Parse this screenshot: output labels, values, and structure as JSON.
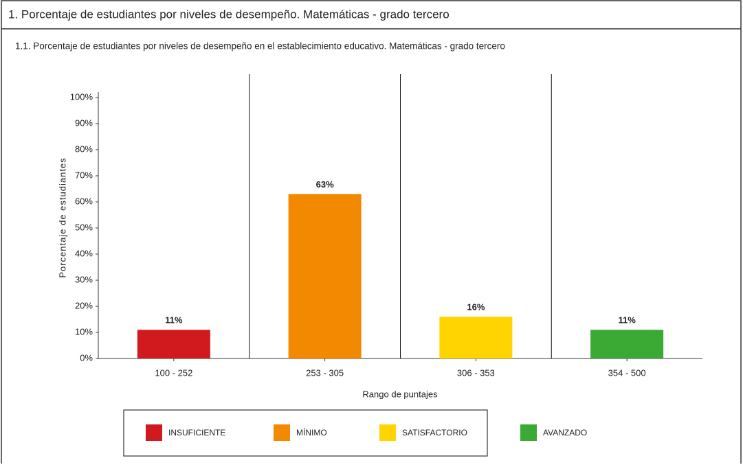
{
  "header": {
    "title": "1. Porcentaje de estudiantes por niveles de desempeño. Matemáticas - grado tercero"
  },
  "chart_data": {
    "type": "bar",
    "title": "1.1. Porcentaje de estudiantes por niveles de desempeño en el establecimiento educativo. Matemáticas - grado tercero",
    "x_label": "Rango de puntajes",
    "y_label": "Porcentaje de estudiantes",
    "categories": [
      "100 - 252",
      "253 - 305",
      "306 - 353",
      "354 - 500"
    ],
    "values": [
      11,
      63,
      16,
      11
    ],
    "value_labels": [
      "11%",
      "63%",
      "16%",
      "11%"
    ],
    "colors": [
      "#d11a1e",
      "#f28900",
      "#ffd400",
      "#3aaa35"
    ],
    "legend": [
      "INSUFICIENTE",
      "MÍNIMO",
      "SATISFACTORIO",
      "AVANZADO"
    ],
    "ylim": [
      0,
      100
    ],
    "yticks": [
      {
        "value": 0,
        "label": "0%"
      },
      {
        "value": 10,
        "label": "10%"
      },
      {
        "value": 20,
        "label": "20%"
      },
      {
        "value": 30,
        "label": "30%"
      },
      {
        "value": 40,
        "label": "40%"
      },
      {
        "value": 50,
        "label": "50%"
      },
      {
        "value": 60,
        "label": "60%"
      },
      {
        "value": 70,
        "label": "70%"
      },
      {
        "value": 80,
        "label": "80%"
      },
      {
        "value": 90,
        "label": "90%"
      },
      {
        "value": 100,
        "label": "100%"
      }
    ],
    "grid": false
  }
}
